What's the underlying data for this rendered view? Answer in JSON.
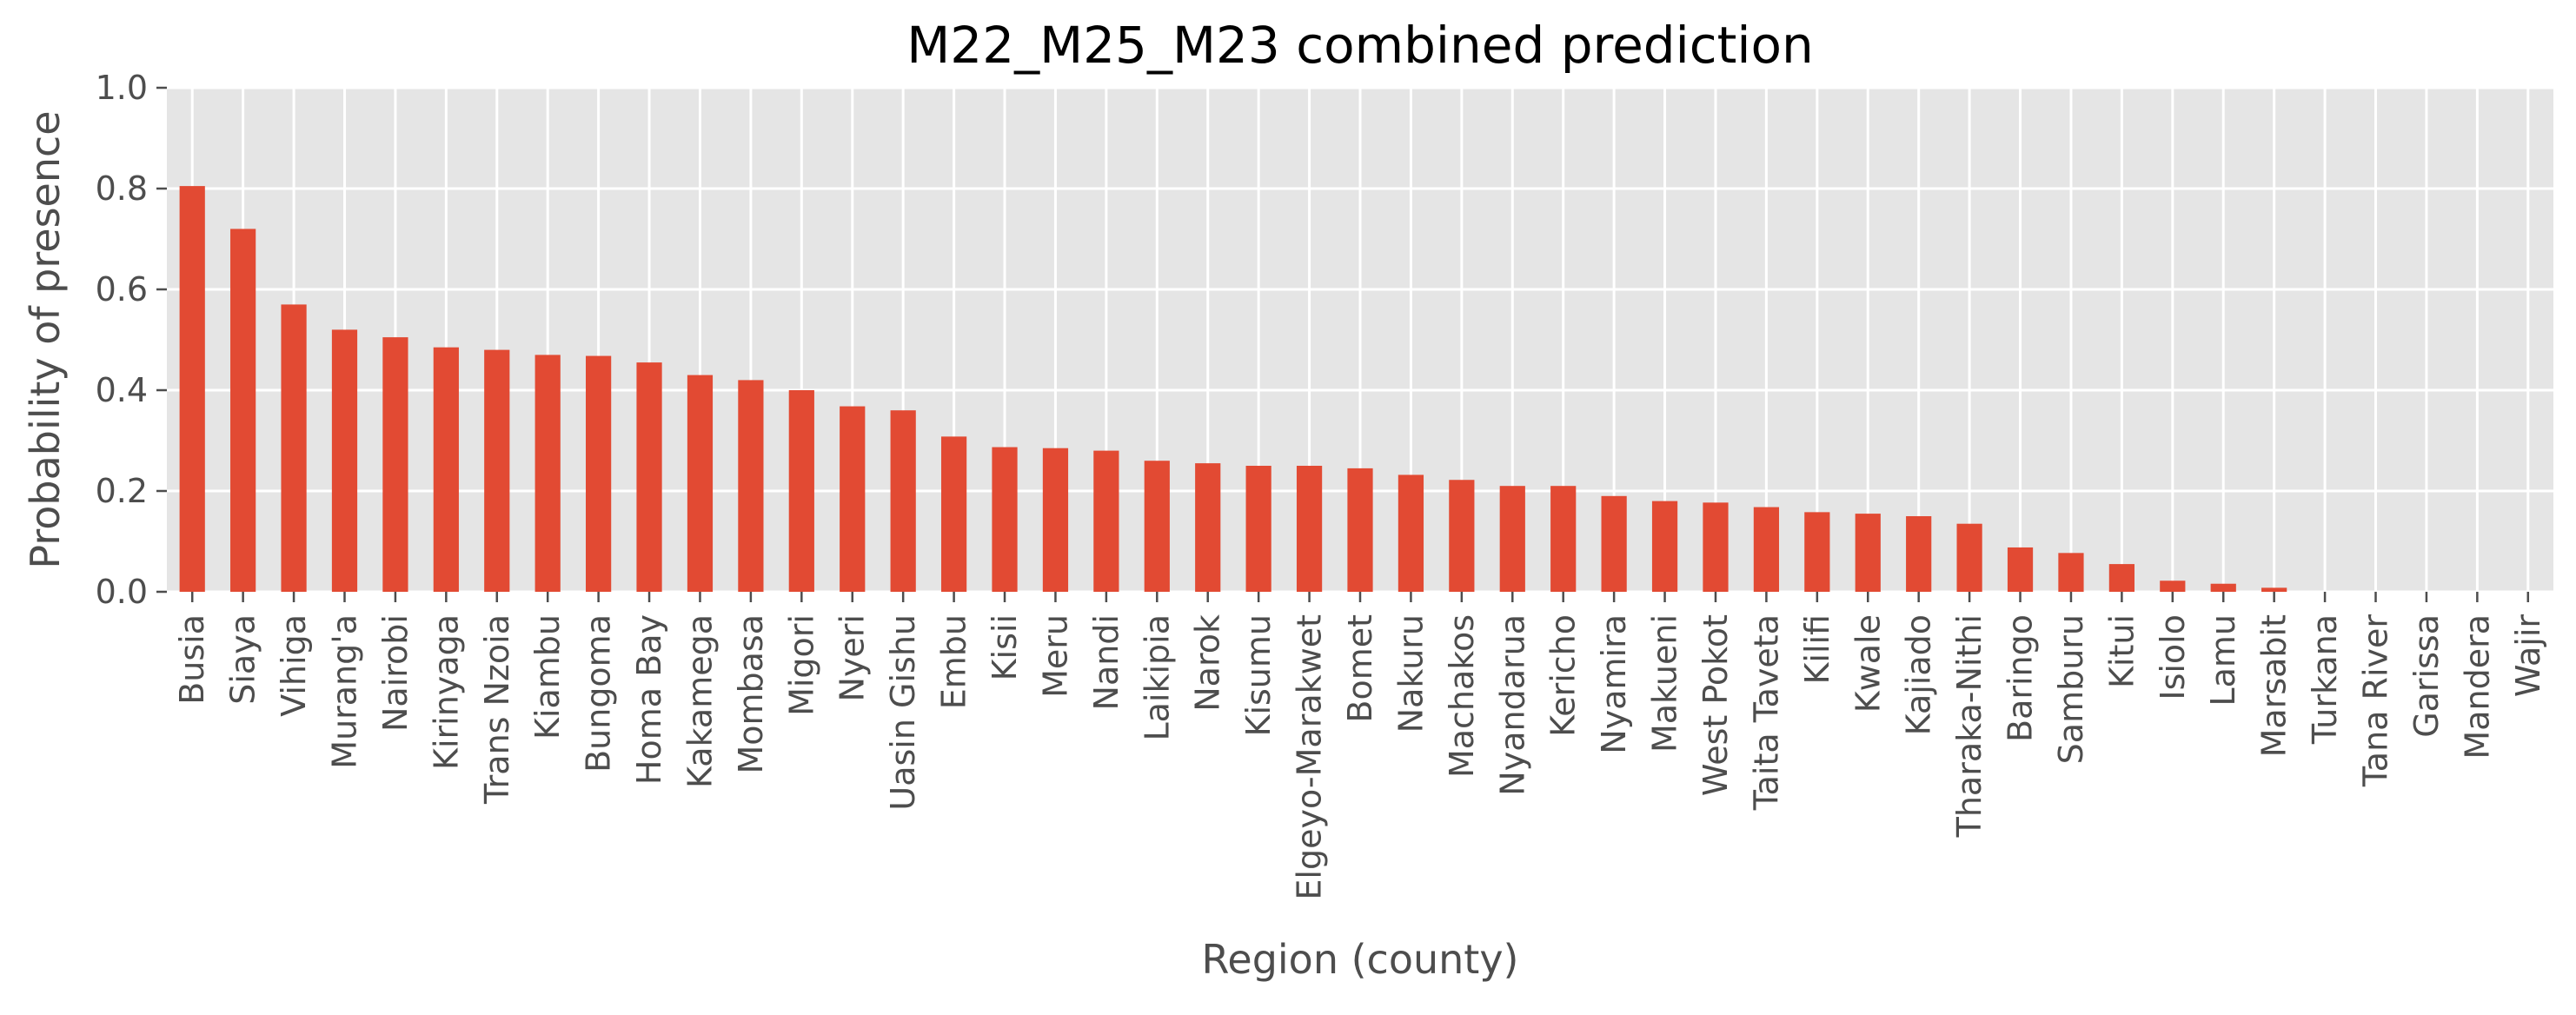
{
  "chart_data": {
    "type": "bar",
    "title": "M22_M25_M23 combined prediction",
    "xlabel": "Region (county)",
    "ylabel": "Probability of presence",
    "ylim": [
      0,
      1.0
    ],
    "yticks": [
      "0.0",
      "0.2",
      "0.4",
      "0.6",
      "0.8",
      "1.0"
    ],
    "grid": true,
    "categories": [
      "Busia",
      "Siaya",
      "Vihiga",
      "Murang'a",
      "Nairobi",
      "Kirinyaga",
      "Trans Nzoia",
      "Kiambu",
      "Bungoma",
      "Homa Bay",
      "Kakamega",
      "Mombasa",
      "Migori",
      "Nyeri",
      "Uasin Gishu",
      "Embu",
      "Kisii",
      "Meru",
      "Nandi",
      "Laikipia",
      "Narok",
      "Kisumu",
      "Elgeyo-Marakwet",
      "Bomet",
      "Nakuru",
      "Machakos",
      "Nyandarua",
      "Kericho",
      "Nyamira",
      "Makueni",
      "West Pokot",
      "Taita Taveta",
      "Kilifi",
      "Kwale",
      "Kajiado",
      "Tharaka-Nithi",
      "Baringo",
      "Samburu",
      "Kitui",
      "Isiolo",
      "Lamu",
      "Marsabit",
      "Turkana",
      "Tana River",
      "Garissa",
      "Mandera",
      "Wajir"
    ],
    "values": [
      0.805,
      0.72,
      0.57,
      0.52,
      0.505,
      0.485,
      0.48,
      0.47,
      0.468,
      0.455,
      0.43,
      0.42,
      0.4,
      0.368,
      0.36,
      0.308,
      0.287,
      0.285,
      0.28,
      0.26,
      0.255,
      0.25,
      0.25,
      0.245,
      0.232,
      0.222,
      0.21,
      0.21,
      0.19,
      0.18,
      0.177,
      0.168,
      0.158,
      0.155,
      0.15,
      0.135,
      0.088,
      0.077,
      0.055,
      0.022,
      0.016,
      0.008,
      0.0,
      0.0,
      0.0,
      0.0,
      0.0
    ],
    "bar_color": "#E24A33",
    "background_color": "#E5E5E5",
    "grid_color": "#FFFFFF"
  }
}
